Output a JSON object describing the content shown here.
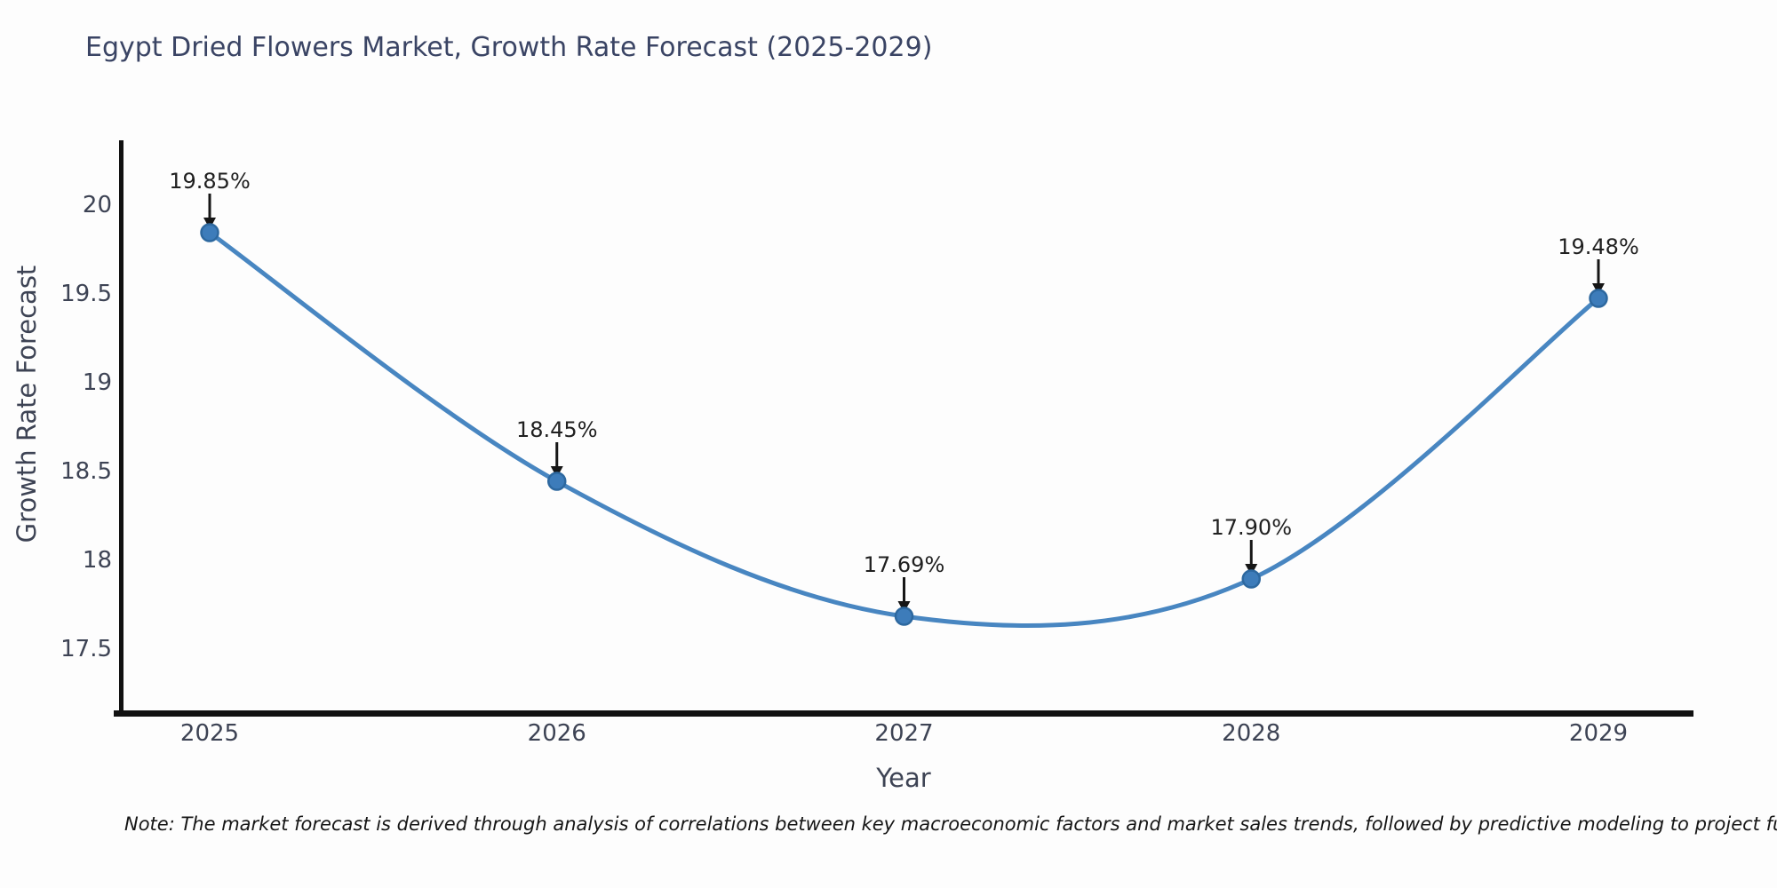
{
  "title": "Egypt Dried Flowers Market, Growth Rate Forecast (2025-2029)",
  "axes": {
    "x_label": "Year",
    "y_label": "Growth Rate Forecast"
  },
  "note": "Note: The market forecast is derived through analysis of correlations between key macroeconomic factors and market sales trends, followed by predictive modeling to project future sal",
  "chart_data": {
    "type": "line",
    "title": "Egypt Dried Flowers Market, Growth Rate Forecast (2025-2029)",
    "xlabel": "Year",
    "ylabel": "Growth Rate Forecast",
    "x": [
      2025,
      2026,
      2027,
      2028,
      2029
    ],
    "values": [
      19.85,
      18.45,
      17.69,
      17.9,
      19.48
    ],
    "labels": [
      "19.85%",
      "18.45%",
      "17.69%",
      "17.90%",
      "19.48%"
    ],
    "yticks": [
      20,
      19.5,
      19,
      18.5,
      18,
      17.5
    ],
    "ytick_labels": [
      "20",
      "19.5",
      "19",
      "18.5",
      "18",
      "17.5"
    ],
    "ylim": [
      17.15,
      20.38
    ],
    "grid": false,
    "legend": "none",
    "smooth_spline": true,
    "line_color": "#4886c1",
    "marker_color": "#3d7cba",
    "marker_edge_color": "#2d689f",
    "annotation_arrow_color": "#161616",
    "title_color": "#3a4464",
    "axis_text_color": "#3d4354"
  }
}
